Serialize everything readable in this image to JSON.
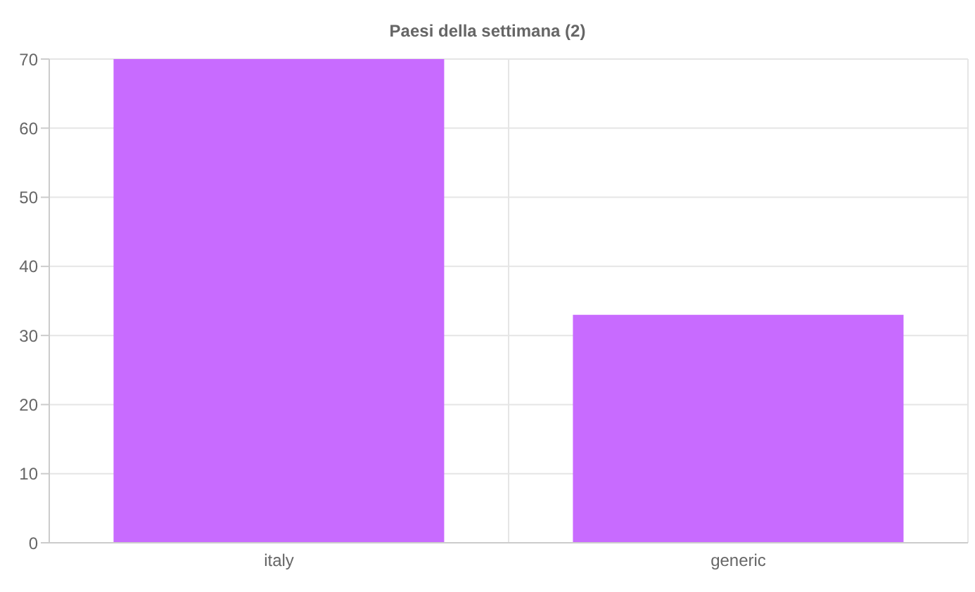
{
  "chart_data": {
    "type": "bar",
    "title": "Paesi della settimana (2)",
    "categories": [
      "italy",
      "generic"
    ],
    "values": [
      70,
      33
    ],
    "color": "#c86bff",
    "ylim": [
      0,
      70
    ],
    "yticks": [
      0,
      10,
      20,
      30,
      40,
      50,
      60,
      70
    ],
    "grid": true
  }
}
